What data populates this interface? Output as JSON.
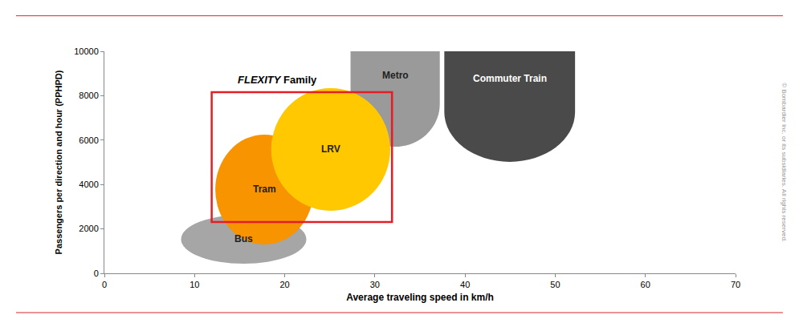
{
  "chart_data": {
    "type": "region",
    "x_label": "Average traveling speed in km/h",
    "y_label": "Passengers per direction and hour (PPHPD)",
    "xlim": [
      0,
      70
    ],
    "xticks": [
      0,
      10,
      20,
      30,
      40,
      50,
      60,
      70
    ],
    "ylim": [
      0,
      10000
    ],
    "yticks": [
      0,
      2000,
      4000,
      6000,
      8000,
      10000
    ],
    "grid": false,
    "series": [
      {
        "name": "Bus",
        "marker": "ellipse",
        "color": "#a6a6a6",
        "x": [
          8.5,
          22.4
        ],
        "y": [
          430,
          2640
        ]
      },
      {
        "name": "Metro",
        "marker": "rounded_bottom",
        "color": "#9a9a9a",
        "x": [
          27.3,
          37.2
        ],
        "y": [
          5700,
          10000
        ]
      },
      {
        "name": "Commuter Train",
        "marker": "rounded_bottom",
        "color": "#4a4a4a",
        "x": [
          37.7,
          52.2
        ],
        "y": [
          5020,
          10000
        ]
      },
      {
        "name": "Tram",
        "marker": "ellipse",
        "color": "#f79400",
        "x": [
          12.3,
          23.2
        ],
        "y": [
          1300,
          6250
        ]
      },
      {
        "name": "LRV",
        "marker": "ellipse",
        "color": "#ffc800",
        "x": [
          18.5,
          31.7
        ],
        "y": [
          2820,
          8340
        ]
      }
    ],
    "frame": {
      "label": "FLEXITY Family",
      "color": "#e31e24",
      "x": [
        11.9,
        31.9
      ],
      "y": [
        2310,
        8160
      ]
    },
    "annotations": [
      "© Bombardier Inc. or its subsidiaries. All rights reserved."
    ]
  }
}
